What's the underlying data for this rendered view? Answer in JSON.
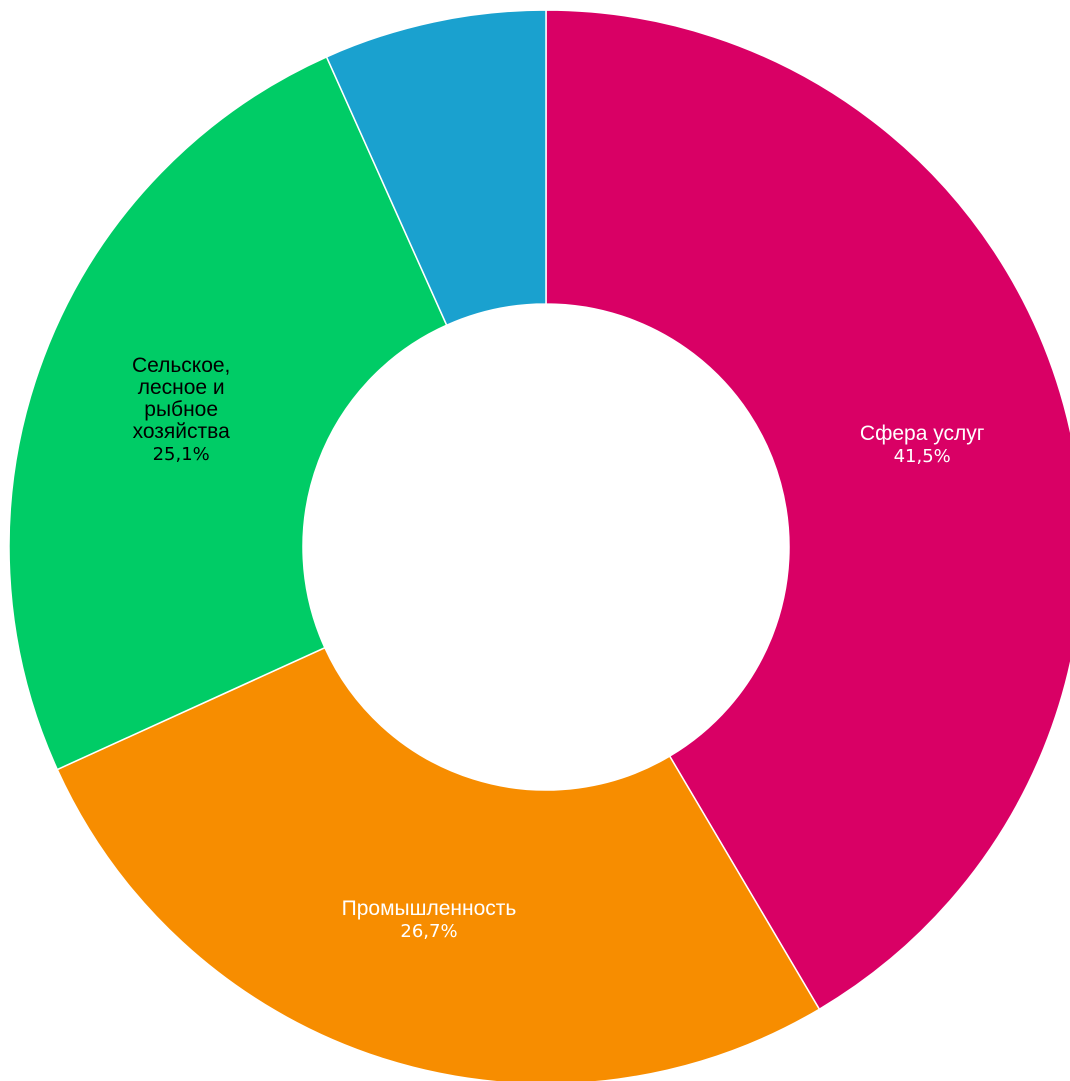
{
  "chart_data": {
    "type": "pie",
    "donut": true,
    "segments": [
      {
        "label": "Сфера услуг",
        "value": 41.5,
        "value_label": "41,5%",
        "color": "#d90065",
        "label_color": "#ffffff",
        "label_lines": [
          "Сфера услуг"
        ]
      },
      {
        "label": "Промышленность",
        "value": 26.7,
        "value_label": "26,7%",
        "color": "#f78d00",
        "label_color": "#ffffff",
        "label_lines": [
          "Промышленность"
        ]
      },
      {
        "label": "Сельское, лесное и рыбное хозяйства",
        "value": 25.1,
        "value_label": "25,1%",
        "color": "#00cc66",
        "label_color": "#000000",
        "label_lines": [
          "Сельское,",
          "лесное и",
          "рыбное",
          "хозяйства"
        ]
      },
      {
        "label": "",
        "value": 6.7,
        "value_label": "",
        "color": "#1aa1cf",
        "label_color": "#ffffff",
        "label_lines": []
      }
    ],
    "title": "",
    "legend": "none"
  }
}
